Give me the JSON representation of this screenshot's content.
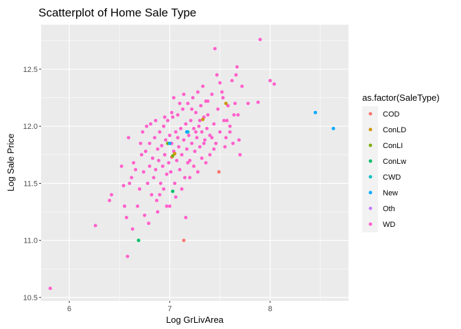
{
  "chart_data": {
    "type": "scatter",
    "title": "Scatterplot of Home Sale Type",
    "xlabel": "Log GrLivArea",
    "ylabel": "Log Sale Price",
    "xlim": [
      5.72,
      8.78
    ],
    "ylim": [
      10.47,
      12.89
    ],
    "x_ticks": [
      6,
      7,
      8
    ],
    "x_tick_labels": [
      "6",
      "7",
      "8"
    ],
    "y_ticks": [
      10.5,
      11.0,
      11.5,
      12.0,
      12.5
    ],
    "y_tick_labels": [
      "10.5",
      "11.0",
      "11.5",
      "12.0",
      "12.5"
    ],
    "grid": true,
    "legend": {
      "title": "as.factor(SaleType)",
      "position": "right",
      "entries": [
        "COD",
        "ConLD",
        "ConLI",
        "ConLw",
        "CWD",
        "New",
        "Oth",
        "WD"
      ]
    },
    "colors": {
      "COD": "#F8766D",
      "ConLD": "#CD9600",
      "ConLI": "#7CAE00",
      "ConLw": "#00BE67",
      "CWD": "#00BFC4",
      "New": "#00A9FF",
      "Oth": "#C77CFF",
      "WD": "#FF61CC",
      "panel": "#EBEBEB",
      "grid": "#FFFFFF"
    },
    "series": [
      {
        "name": "COD",
        "points": [
          [
            7.14,
            11.0
          ],
          [
            7.49,
            11.6
          ],
          [
            7.02,
            11.73
          ]
        ]
      },
      {
        "name": "ConLD",
        "points": [
          [
            7.56,
            12.2
          ],
          [
            7.33,
            12.06
          ],
          [
            7.05,
            11.76
          ]
        ]
      },
      {
        "name": "ConLI",
        "points": [
          [
            6.98,
            11.85
          ],
          [
            7.03,
            11.74
          ]
        ]
      },
      {
        "name": "ConLw",
        "points": [
          [
            6.69,
            11.0
          ],
          [
            7.03,
            11.43
          ]
        ]
      },
      {
        "name": "CWD",
        "points": [
          [
            7.18,
            11.95
          ]
        ]
      },
      {
        "name": "New",
        "points": [
          [
            8.45,
            12.12
          ],
          [
            8.63,
            11.98
          ],
          [
            7.17,
            11.95
          ],
          [
            7.0,
            11.85
          ]
        ]
      },
      {
        "name": "Oth",
        "points": []
      },
      {
        "name": "WD",
        "points": [
          [
            5.81,
            10.58
          ],
          [
            6.26,
            11.13
          ],
          [
            6.58,
            10.86
          ],
          [
            6.4,
            11.35
          ],
          [
            6.42,
            11.4
          ],
          [
            6.52,
            11.65
          ],
          [
            6.54,
            11.48
          ],
          [
            6.57,
            11.2
          ],
          [
            6.55,
            11.3
          ],
          [
            6.6,
            11.5
          ],
          [
            6.62,
            11.55
          ],
          [
            6.64,
            11.68
          ],
          [
            6.66,
            11.62
          ],
          [
            6.68,
            11.3
          ],
          [
            6.7,
            11.45
          ],
          [
            6.72,
            11.75
          ],
          [
            6.74,
            11.6
          ],
          [
            6.75,
            11.22
          ],
          [
            6.76,
            11.78
          ],
          [
            6.78,
            11.5
          ],
          [
            6.8,
            11.65
          ],
          [
            6.8,
            11.85
          ],
          [
            6.82,
            11.4
          ],
          [
            6.83,
            11.72
          ],
          [
            6.84,
            11.55
          ],
          [
            6.85,
            11.9
          ],
          [
            6.86,
            11.62
          ],
          [
            6.87,
            11.35
          ],
          [
            6.88,
            11.8
          ],
          [
            6.89,
            11.7
          ],
          [
            6.9,
            11.95
          ],
          [
            6.91,
            11.5
          ],
          [
            6.92,
            11.83
          ],
          [
            6.93,
            11.65
          ],
          [
            6.94,
            12.0
          ],
          [
            6.95,
            11.75
          ],
          [
            6.96,
            11.88
          ],
          [
            6.97,
            11.58
          ],
          [
            6.98,
            12.05
          ],
          [
            6.99,
            11.68
          ],
          [
            7.0,
            11.92
          ],
          [
            7.01,
            11.6
          ],
          [
            7.02,
            11.85
          ],
          [
            7.03,
            12.08
          ],
          [
            7.04,
            11.78
          ],
          [
            7.05,
            11.5
          ],
          [
            7.06,
            11.95
          ],
          [
            7.07,
            11.7
          ],
          [
            7.08,
            12.1
          ],
          [
            7.09,
            11.82
          ],
          [
            7.1,
            11.62
          ],
          [
            7.11,
            11.98
          ],
          [
            7.12,
            11.75
          ],
          [
            7.13,
            12.15
          ],
          [
            7.14,
            11.88
          ],
          [
            7.15,
            11.55
          ],
          [
            7.16,
            12.02
          ],
          [
            7.17,
            11.8
          ],
          [
            7.18,
            12.2
          ],
          [
            7.19,
            11.92
          ],
          [
            7.2,
            11.7
          ],
          [
            7.21,
            12.05
          ],
          [
            7.22,
            11.85
          ],
          [
            7.23,
            12.25
          ],
          [
            7.24,
            11.98
          ],
          [
            7.25,
            11.78
          ],
          [
            7.26,
            12.12
          ],
          [
            7.27,
            11.9
          ],
          [
            7.28,
            12.3
          ],
          [
            7.29,
            12.0
          ],
          [
            7.3,
            11.82
          ],
          [
            7.31,
            12.18
          ],
          [
            7.32,
            11.95
          ],
          [
            7.33,
            12.35
          ],
          [
            7.34,
            12.08
          ],
          [
            7.35,
            11.88
          ],
          [
            7.36,
            12.22
          ],
          [
            7.37,
            11.98
          ],
          [
            7.38,
            12.1
          ],
          [
            7.4,
            11.92
          ],
          [
            7.42,
            12.28
          ],
          [
            7.44,
            12.02
          ],
          [
            7.45,
            12.68
          ],
          [
            7.46,
            11.85
          ],
          [
            7.48,
            12.15
          ],
          [
            7.5,
            11.95
          ],
          [
            7.52,
            12.3
          ],
          [
            7.54,
            12.05
          ],
          [
            7.56,
            11.9
          ],
          [
            7.58,
            12.18
          ],
          [
            7.6,
            12.0
          ],
          [
            7.62,
            12.4
          ],
          [
            7.64,
            12.1
          ],
          [
            7.66,
            12.45
          ],
          [
            7.67,
            12.52
          ],
          [
            7.69,
            11.88
          ],
          [
            7.7,
            11.75
          ],
          [
            7.72,
            12.35
          ],
          [
            7.78,
            12.2
          ],
          [
            7.88,
            12.21
          ],
          [
            7.9,
            12.76
          ],
          [
            8.0,
            12.4
          ],
          [
            8.04,
            12.37
          ],
          [
            6.59,
            11.9
          ],
          [
            6.63,
            11.1
          ],
          [
            6.73,
            11.95
          ],
          [
            6.77,
            12.0
          ],
          [
            6.79,
            11.15
          ],
          [
            6.81,
            12.02
          ],
          [
            6.88,
            11.25
          ],
          [
            6.95,
            12.08
          ],
          [
            7.0,
            11.3
          ],
          [
            7.02,
            12.12
          ],
          [
            7.06,
            11.38
          ],
          [
            7.1,
            12.2
          ],
          [
            7.12,
            11.45
          ],
          [
            7.16,
            11.2
          ],
          [
            7.2,
            11.55
          ],
          [
            7.24,
            11.65
          ],
          [
            7.28,
            11.6
          ],
          [
            7.32,
            11.72
          ],
          [
            7.36,
            11.68
          ],
          [
            7.4,
            11.75
          ],
          [
            7.44,
            11.8
          ],
          [
            7.47,
            12.45
          ],
          [
            7.5,
            12.38
          ],
          [
            7.53,
            12.25
          ],
          [
            7.55,
            11.82
          ],
          [
            7.57,
            12.05
          ],
          [
            7.6,
            11.95
          ],
          [
            7.63,
            11.85
          ],
          [
            7.65,
            12.2
          ],
          [
            7.68,
            12.1
          ],
          [
            6.71,
            11.85
          ],
          [
            6.86,
            12.05
          ],
          [
            6.9,
            11.4
          ],
          [
            6.94,
            11.45
          ],
          [
            6.97,
            11.3
          ],
          [
            7.04,
            12.25
          ],
          [
            7.08,
            11.9
          ],
          [
            7.14,
            12.28
          ],
          [
            7.18,
            11.68
          ],
          [
            7.22,
            12.15
          ],
          [
            7.26,
            11.95
          ],
          [
            7.3,
            12.05
          ],
          [
            7.34,
            11.85
          ],
          [
            7.38,
            12.22
          ],
          [
            7.42,
            11.9
          ]
        ]
      }
    ]
  }
}
